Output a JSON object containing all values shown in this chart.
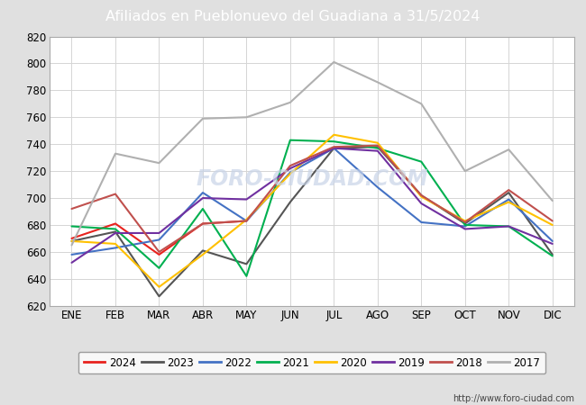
{
  "title": "Afiliados en Pueblonuevo del Guadiana a 31/5/2024",
  "months": [
    "ENE",
    "FEB",
    "MAR",
    "ABR",
    "MAY",
    "JUN",
    "JUL",
    "AGO",
    "SEP",
    "OCT",
    "NOV",
    "DIC"
  ],
  "ylim": [
    620,
    820
  ],
  "yticks": [
    620,
    640,
    660,
    680,
    700,
    720,
    740,
    760,
    780,
    800,
    820
  ],
  "series": {
    "2024": {
      "color": "#e8221e",
      "data": [
        670,
        681,
        658,
        681,
        683,
        null,
        null,
        null,
        null,
        null,
        null,
        null
      ]
    },
    "2023": {
      "color": "#555555",
      "data": [
        668,
        675,
        627,
        661,
        651,
        697,
        737,
        738,
        702,
        681,
        704,
        658
      ]
    },
    "2022": {
      "color": "#4472c4",
      "data": [
        658,
        663,
        669,
        704,
        683,
        719,
        737,
        708,
        682,
        679,
        699,
        668
      ]
    },
    "2021": {
      "color": "#00b050",
      "data": [
        679,
        677,
        648,
        692,
        642,
        743,
        742,
        737,
        727,
        680,
        679,
        657
      ]
    },
    "2020": {
      "color": "#ffc000",
      "data": [
        668,
        666,
        634,
        658,
        684,
        718,
        747,
        741,
        701,
        683,
        697,
        680
      ]
    },
    "2019": {
      "color": "#7030a0",
      "data": [
        652,
        674,
        674,
        700,
        699,
        722,
        737,
        735,
        696,
        677,
        679,
        666
      ]
    },
    "2018": {
      "color": "#c0504d",
      "data": [
        692,
        703,
        660,
        681,
        683,
        724,
        738,
        739,
        702,
        682,
        706,
        683
      ]
    },
    "2017": {
      "color": "#b0b0b0",
      "data": [
        665,
        733,
        726,
        759,
        760,
        771,
        801,
        786,
        770,
        720,
        736,
        698
      ]
    }
  },
  "legend_order": [
    "2024",
    "2023",
    "2022",
    "2021",
    "2020",
    "2019",
    "2018",
    "2017"
  ],
  "url": "http://www.foro-ciudad.com",
  "header_bg": "#5b8dd9",
  "header_text_color": "#ffffff",
  "fig_bg": "#e0e0e0",
  "plot_bg": "#ffffff",
  "plot_border_color": "#aaaaaa",
  "grid_color": "#d5d5d5",
  "watermark_text": "FORO-CIUDAD.COM",
  "watermark_color": "#c8d4e8",
  "tick_label_size": 8.5,
  "line_width": 1.5
}
